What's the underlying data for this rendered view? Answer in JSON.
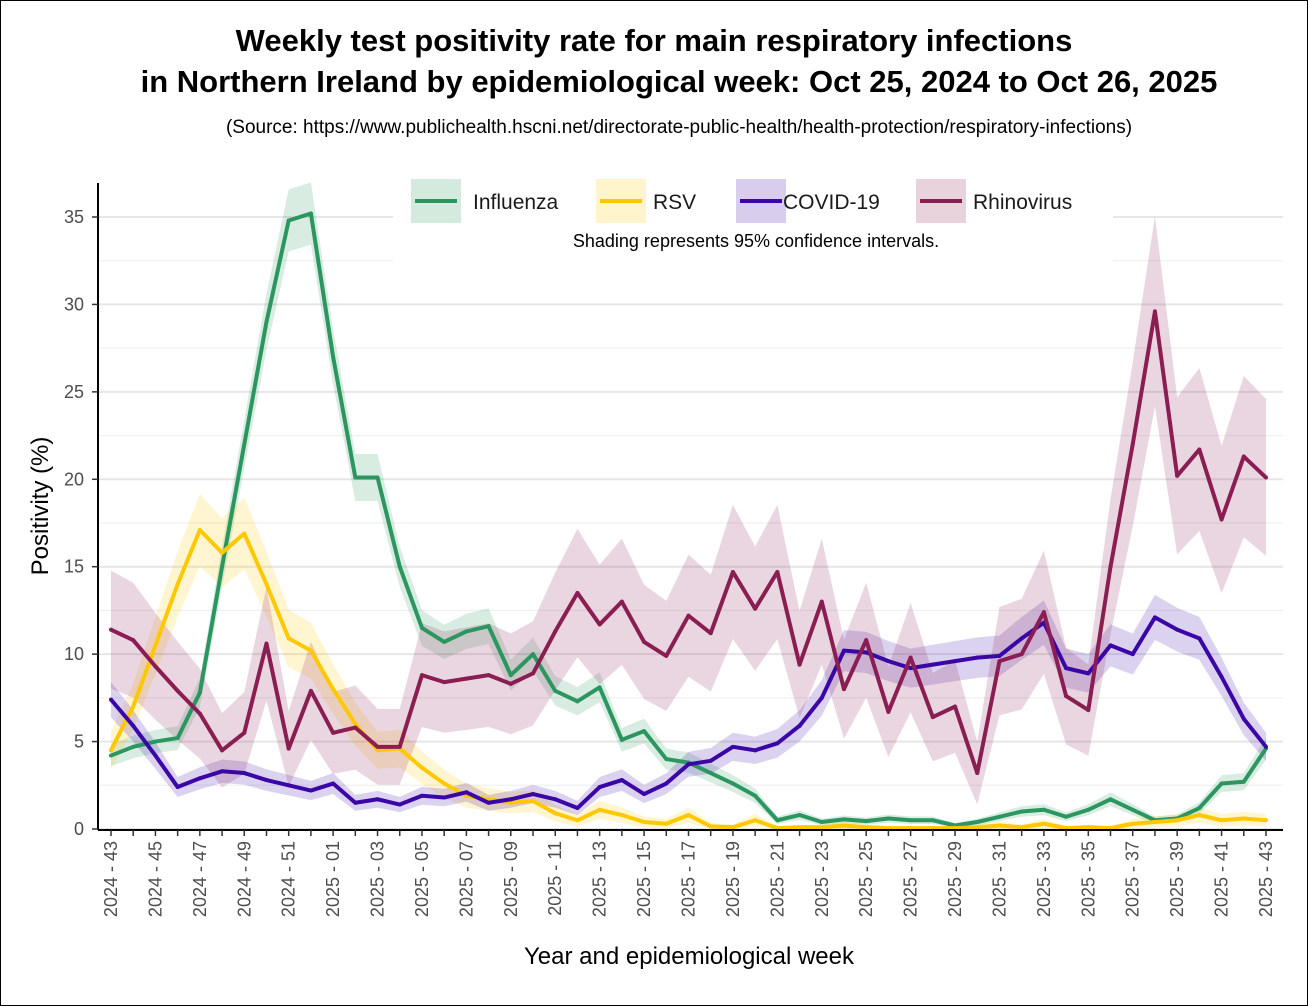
{
  "title_line1": "Weekly test positivity rate for main respiratory infections",
  "title_line2": "in Northern Ireland by epidemiological week: Oct 25, 2024 to Oct 26, 2025",
  "source": "(Source: https://www.publichealth.hscni.net/directorate-public-health/health-protection/respiratory-infections)",
  "chart_data": {
    "type": "line",
    "xlabel": "Year and epidemiological week",
    "ylabel": "Positivity (%)",
    "ylim": [
      0,
      37
    ],
    "yticks": [
      "0",
      "5",
      "10",
      "15",
      "20",
      "25",
      "30",
      "35"
    ],
    "grid": true,
    "legend_position": "top",
    "legend_note": "Shading represents 95% confidence intervals.",
    "x": [
      "2024 - 43",
      "2024 - 44",
      "2024 - 45",
      "2024 - 46",
      "2024 - 47",
      "2024 - 48",
      "2024 - 49",
      "2024 - 50",
      "2024 - 51",
      "2024 - 52",
      "2025 - 01",
      "2025 - 02",
      "2025 - 03",
      "2025 - 04",
      "2025 - 05",
      "2025 - 06",
      "2025 - 07",
      "2025 - 08",
      "2025 - 09",
      "2025 - 10",
      "2025 - 11",
      "2025 - 12",
      "2025 - 13",
      "2025 - 14",
      "2025 - 15",
      "2025 - 16",
      "2025 - 17",
      "2025 - 18",
      "2025 - 19",
      "2025 - 20",
      "2025 - 21",
      "2025 - 22",
      "2025 - 23",
      "2025 - 24",
      "2025 - 25",
      "2025 - 26",
      "2025 - 27",
      "2025 - 28",
      "2025 - 29",
      "2025 - 30",
      "2025 - 31",
      "2025 - 32",
      "2025 - 33",
      "2025 - 34",
      "2025 - 35",
      "2025 - 36",
      "2025 - 37",
      "2025 - 38",
      "2025 - 39",
      "2025 - 40",
      "2025 - 41",
      "2025 - 42",
      "2025 - 43"
    ],
    "series": [
      {
        "name": "Influenza",
        "color": "#2b9660",
        "ci_scale": 0.3,
        "values": [
          4.2,
          4.7,
          5.0,
          5.2,
          7.8,
          15,
          22,
          29,
          34.8,
          35.2,
          27,
          20.1,
          20.1,
          15,
          11.5,
          10.7,
          11.3,
          11.6,
          8.8,
          10.0,
          7.9,
          7.3,
          8.1,
          5.1,
          5.6,
          4.0,
          3.8,
          3.2,
          2.6,
          1.9,
          0.5,
          0.8,
          0.4,
          0.55,
          0.45,
          0.6,
          0.5,
          0.5,
          0.2,
          0.4,
          0.7,
          1.0,
          1.1,
          0.7,
          1.1,
          1.7,
          1.1,
          0.5,
          0.6,
          1.2,
          2.6,
          2.7,
          4.6
        ]
      },
      {
        "name": "RSV",
        "color": "#ffc800",
        "ci_scale": 0.5,
        "values": [
          4.5,
          7,
          10.5,
          14,
          17.1,
          15.8,
          16.9,
          14,
          10.9,
          10.2,
          8,
          6,
          4.5,
          4.6,
          3.5,
          2.6,
          1.9,
          1.7,
          1.5,
          1.6,
          0.9,
          0.5,
          1.1,
          0.8,
          0.4,
          0.3,
          0.8,
          0.15,
          0.1,
          0.5,
          0.05,
          0.1,
          0.1,
          0.2,
          0.1,
          0.05,
          0.05,
          0.05,
          0.05,
          0.1,
          0.2,
          0.1,
          0.3,
          0.05,
          0.1,
          0.05,
          0.3,
          0.4,
          0.5,
          0.8,
          0.5,
          0.6,
          0.5
        ]
      },
      {
        "name": "COVID-19",
        "color": "#3a06a6",
        "ci_scale": 0.37,
        "values": [
          7.4,
          5.9,
          4.2,
          2.4,
          2.9,
          3.3,
          3.2,
          2.8,
          2.5,
          2.2,
          2.6,
          1.5,
          1.7,
          1.4,
          1.9,
          1.8,
          2.1,
          1.5,
          1.7,
          2.0,
          1.7,
          1.2,
          2.4,
          2.8,
          2.0,
          2.6,
          3.7,
          3.9,
          4.7,
          4.5,
          4.9,
          5.9,
          7.5,
          10.2,
          10.1,
          9.6,
          9.2,
          9.4,
          9.6,
          9.8,
          9.9,
          10.9,
          11.8,
          9.2,
          8.9,
          10.5,
          10.0,
          12.1,
          11.4,
          10.9,
          8.7,
          6.3,
          4.7
        ]
      },
      {
        "name": "Rhinovirus",
        "color": "#8a1d52",
        "ci_scale": 1.0,
        "values": [
          11.4,
          10.8,
          9.3,
          7.9,
          6.6,
          4.5,
          5.5,
          10.6,
          4.6,
          7.9,
          5.5,
          5.8,
          4.7,
          4.7,
          8.8,
          8.4,
          8.6,
          8.8,
          8.3,
          8.9,
          11.3,
          13.5,
          11.7,
          13.0,
          10.7,
          9.9,
          12.2,
          11.2,
          14.7,
          12.6,
          14.7,
          9.4,
          13.0,
          8.0,
          10.8,
          6.7,
          9.8,
          6.4,
          7.0,
          3.2,
          9.6,
          10.0,
          12.4,
          7.6,
          6.8,
          15,
          22,
          29.6,
          20.2,
          21.7,
          17.7,
          21.3,
          20.1
        ]
      }
    ]
  }
}
